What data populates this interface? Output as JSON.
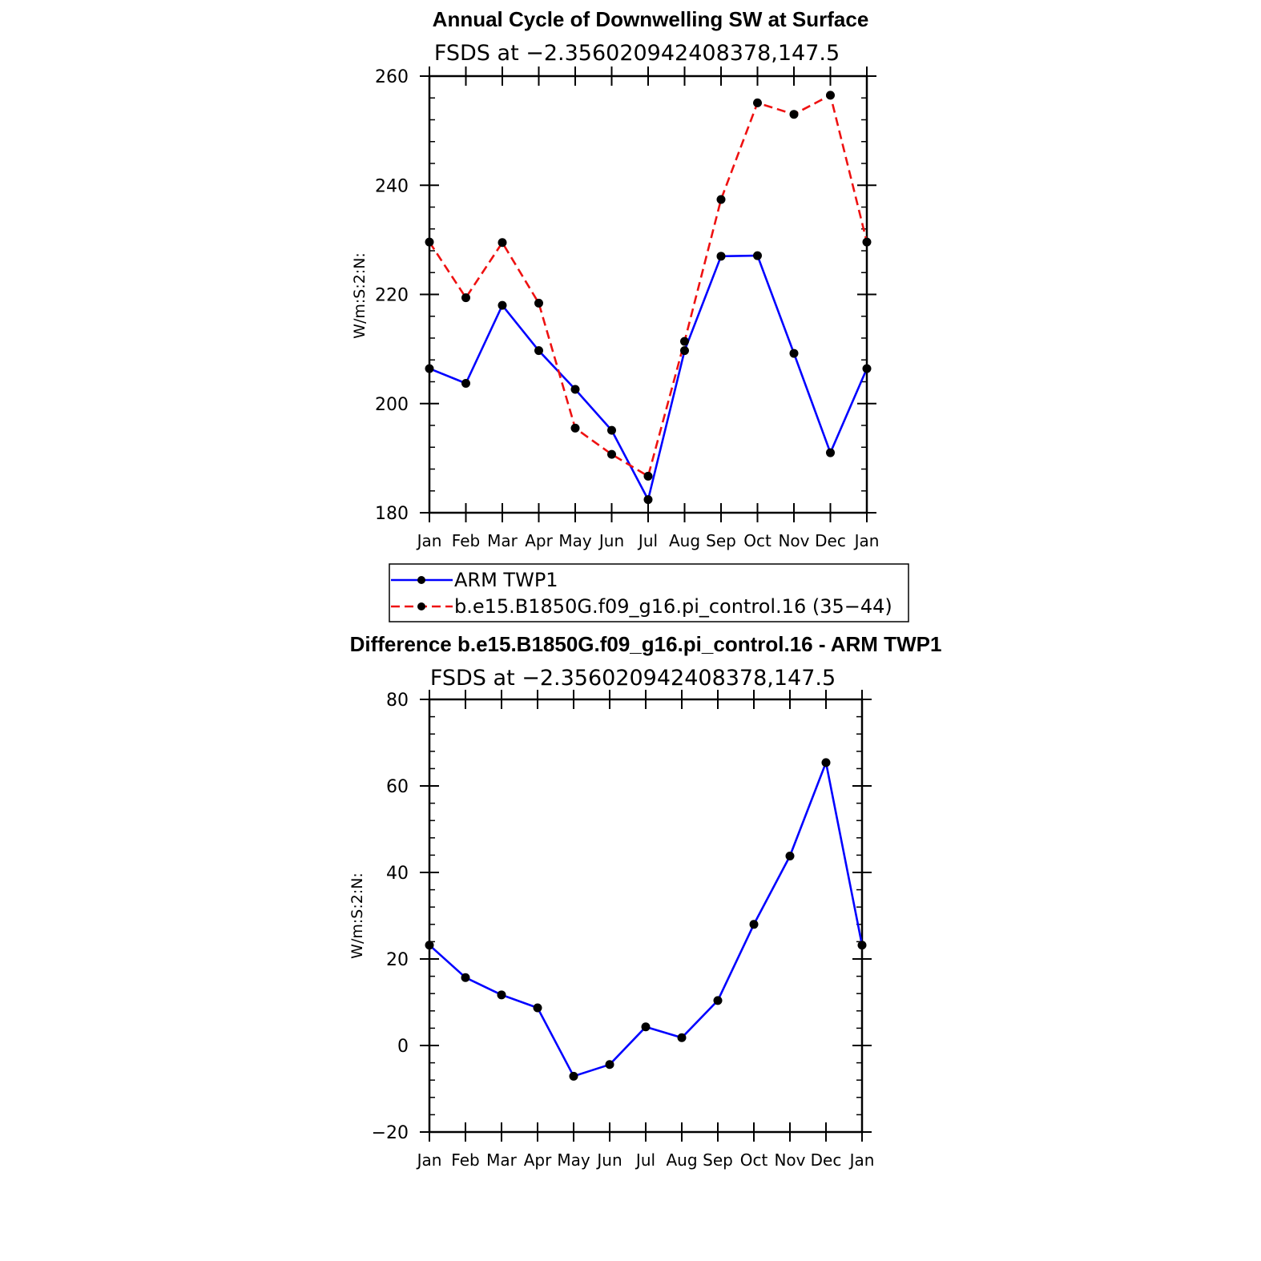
{
  "chart_data": [
    {
      "type": "line",
      "title": "Annual Cycle of Downwelling SW at Surface",
      "subtitle": "FSDS at −2.356020942408378,147.5",
      "ylabel": "W/m:S:2:N:",
      "xlabel": "",
      "ylim": [
        180,
        260
      ],
      "y_ticks": [
        "260",
        "240",
        "220",
        "200",
        "180"
      ],
      "categories": [
        "Jan",
        "Feb",
        "Mar",
        "Apr",
        "May",
        "Jun",
        "Jul",
        "Aug",
        "Sep",
        "Oct",
        "Nov",
        "Dec",
        "Jan"
      ],
      "grid": false,
      "legend_position": "bottom",
      "series": [
        {
          "name": "ARM  TWP1",
          "color": "#0000ff",
          "dashed": false,
          "values": [
            206.4,
            203.7,
            218.0,
            209.7,
            202.6,
            195.1,
            182.4,
            209.7,
            227.0,
            227.1,
            209.2,
            191.0,
            206.4
          ]
        },
        {
          "name": "b.e15.B1850G.f09_g16.pi_control.16  (35−44)",
          "color": "#ee1111",
          "dashed": true,
          "values": [
            229.6,
            219.4,
            229.5,
            218.4,
            195.5,
            190.7,
            186.7,
            211.4,
            237.4,
            255.1,
            253.0,
            256.5,
            229.6
          ]
        }
      ]
    },
    {
      "type": "line",
      "title": "Difference b.e15.B1850G.f09_g16.pi_control.16 - ARM TWP1",
      "subtitle": "FSDS at −2.356020942408378,147.5",
      "ylabel": "W/m:S:2:N:",
      "xlabel": "",
      "ylim": [
        -20,
        80
      ],
      "y_ticks": [
        "80",
        "60",
        "40",
        "20",
        "0",
        "−20"
      ],
      "categories": [
        "Jan",
        "Feb",
        "Mar",
        "Apr",
        "May",
        "Jun",
        "Jul",
        "Aug",
        "Sep",
        "Oct",
        "Nov",
        "Dec",
        "Jan"
      ],
      "grid": false,
      "series": [
        {
          "color": "#0000ff",
          "dashed": false,
          "values": [
            23.2,
            15.7,
            11.7,
            8.7,
            -7.1,
            -4.4,
            4.3,
            1.8,
            10.4,
            28.0,
            43.8,
            65.4,
            23.2
          ]
        }
      ]
    }
  ]
}
